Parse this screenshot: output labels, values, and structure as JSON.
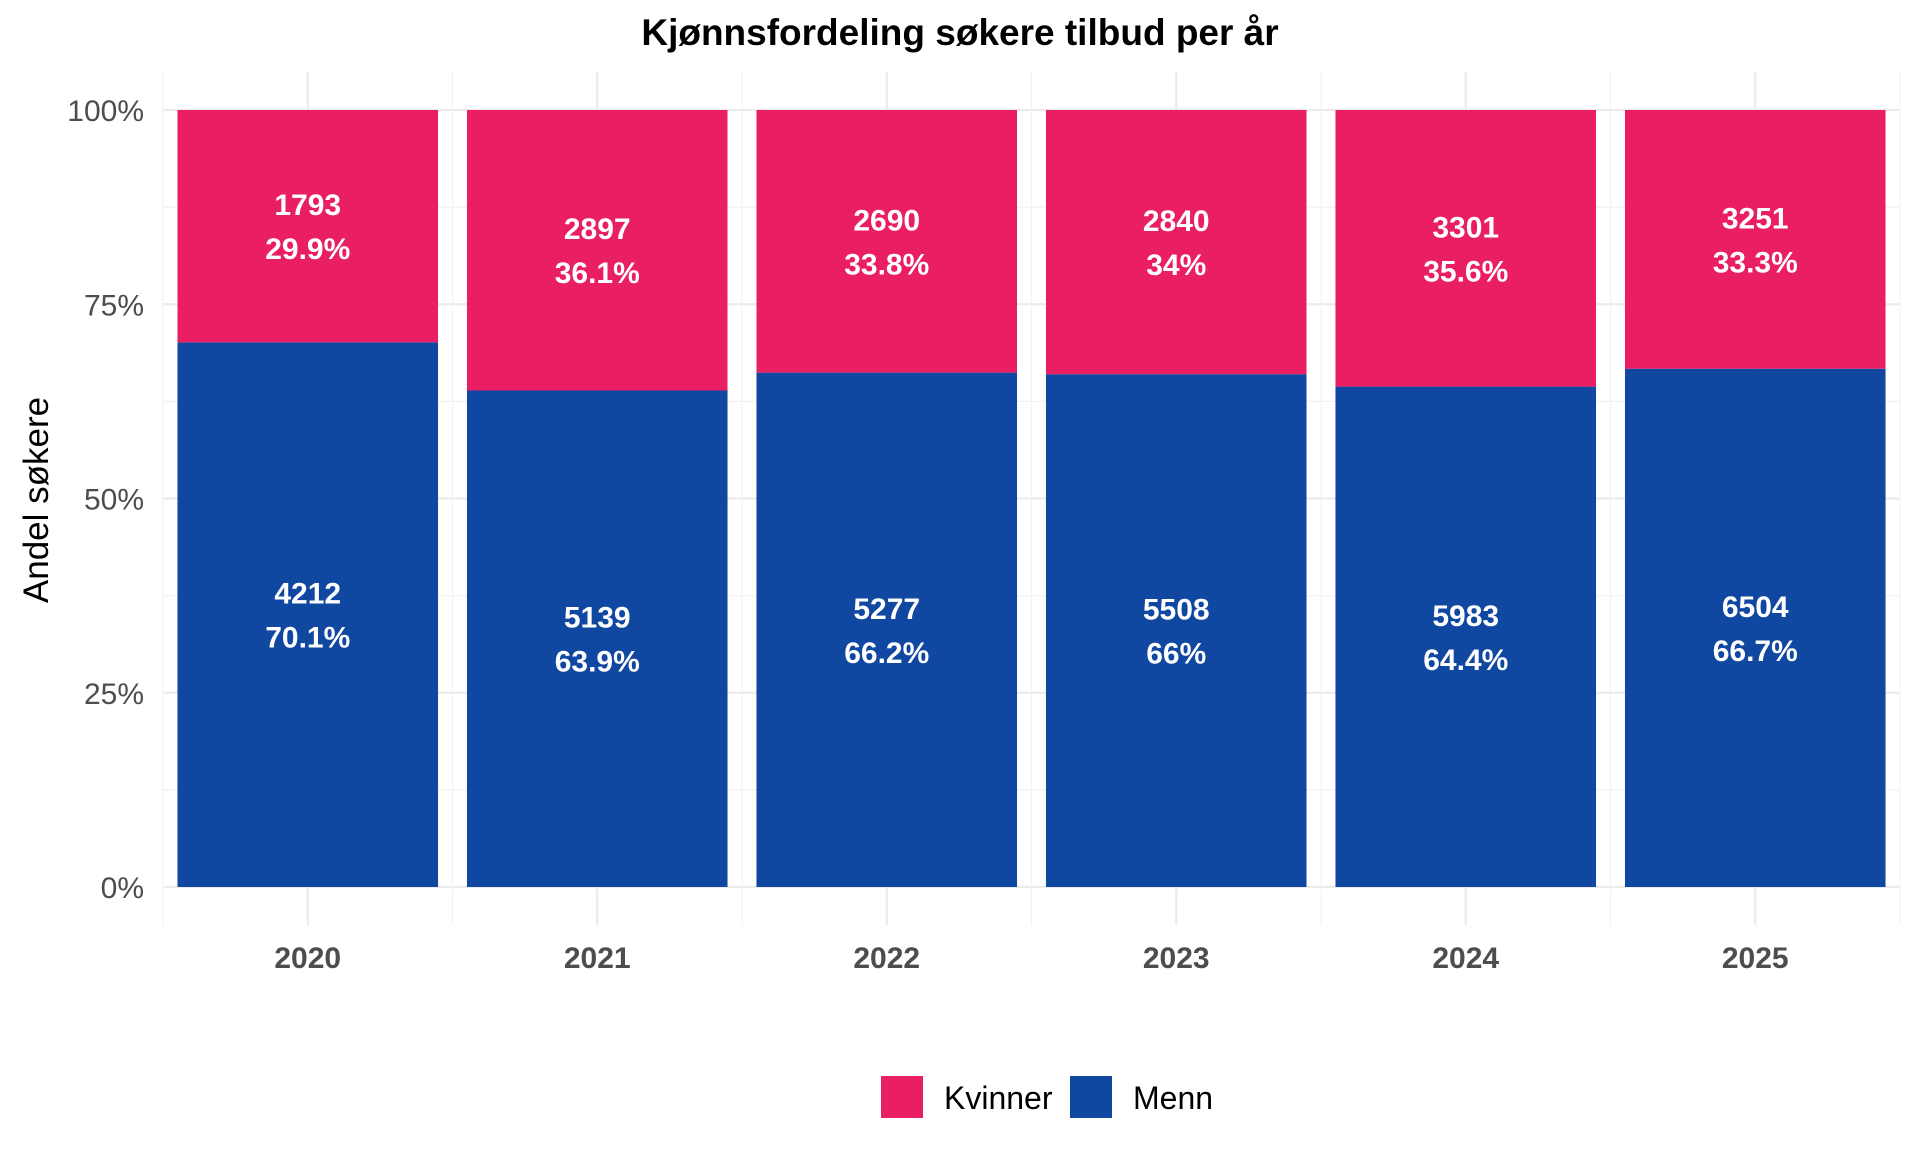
{
  "chart_data": {
    "type": "bar",
    "stacked": true,
    "normalized": true,
    "title": "Kjønnsfordeling søkere tilbud per år",
    "xlabel": "",
    "ylabel": "Andel søkere",
    "categories": [
      "2020",
      "2021",
      "2022",
      "2023",
      "2024",
      "2025"
    ],
    "y_ticks": [
      "0%",
      "25%",
      "50%",
      "75%",
      "100%"
    ],
    "ylim": [
      0,
      100
    ],
    "grid": true,
    "legend_position": "bottom",
    "series": [
      {
        "name": "Kvinner",
        "color": "#E91E63",
        "counts": [
          "1793",
          "2897",
          "2690",
          "2840",
          "3301",
          "3251"
        ],
        "percent_labels": [
          "29.9%",
          "36.1%",
          "33.8%",
          "34%",
          "35.6%",
          "33.3%"
        ],
        "values": [
          29.9,
          36.1,
          33.8,
          34.0,
          35.6,
          33.3
        ]
      },
      {
        "name": "Menn",
        "color": "#0F47A1",
        "counts": [
          "4212",
          "5139",
          "5277",
          "5508",
          "5983",
          "6504"
        ],
        "percent_labels": [
          "70.1%",
          "63.9%",
          "66.2%",
          "66%",
          "64.4%",
          "66.7%"
        ],
        "values": [
          70.1,
          63.9,
          66.2,
          66.0,
          64.4,
          66.7
        ]
      }
    ]
  }
}
